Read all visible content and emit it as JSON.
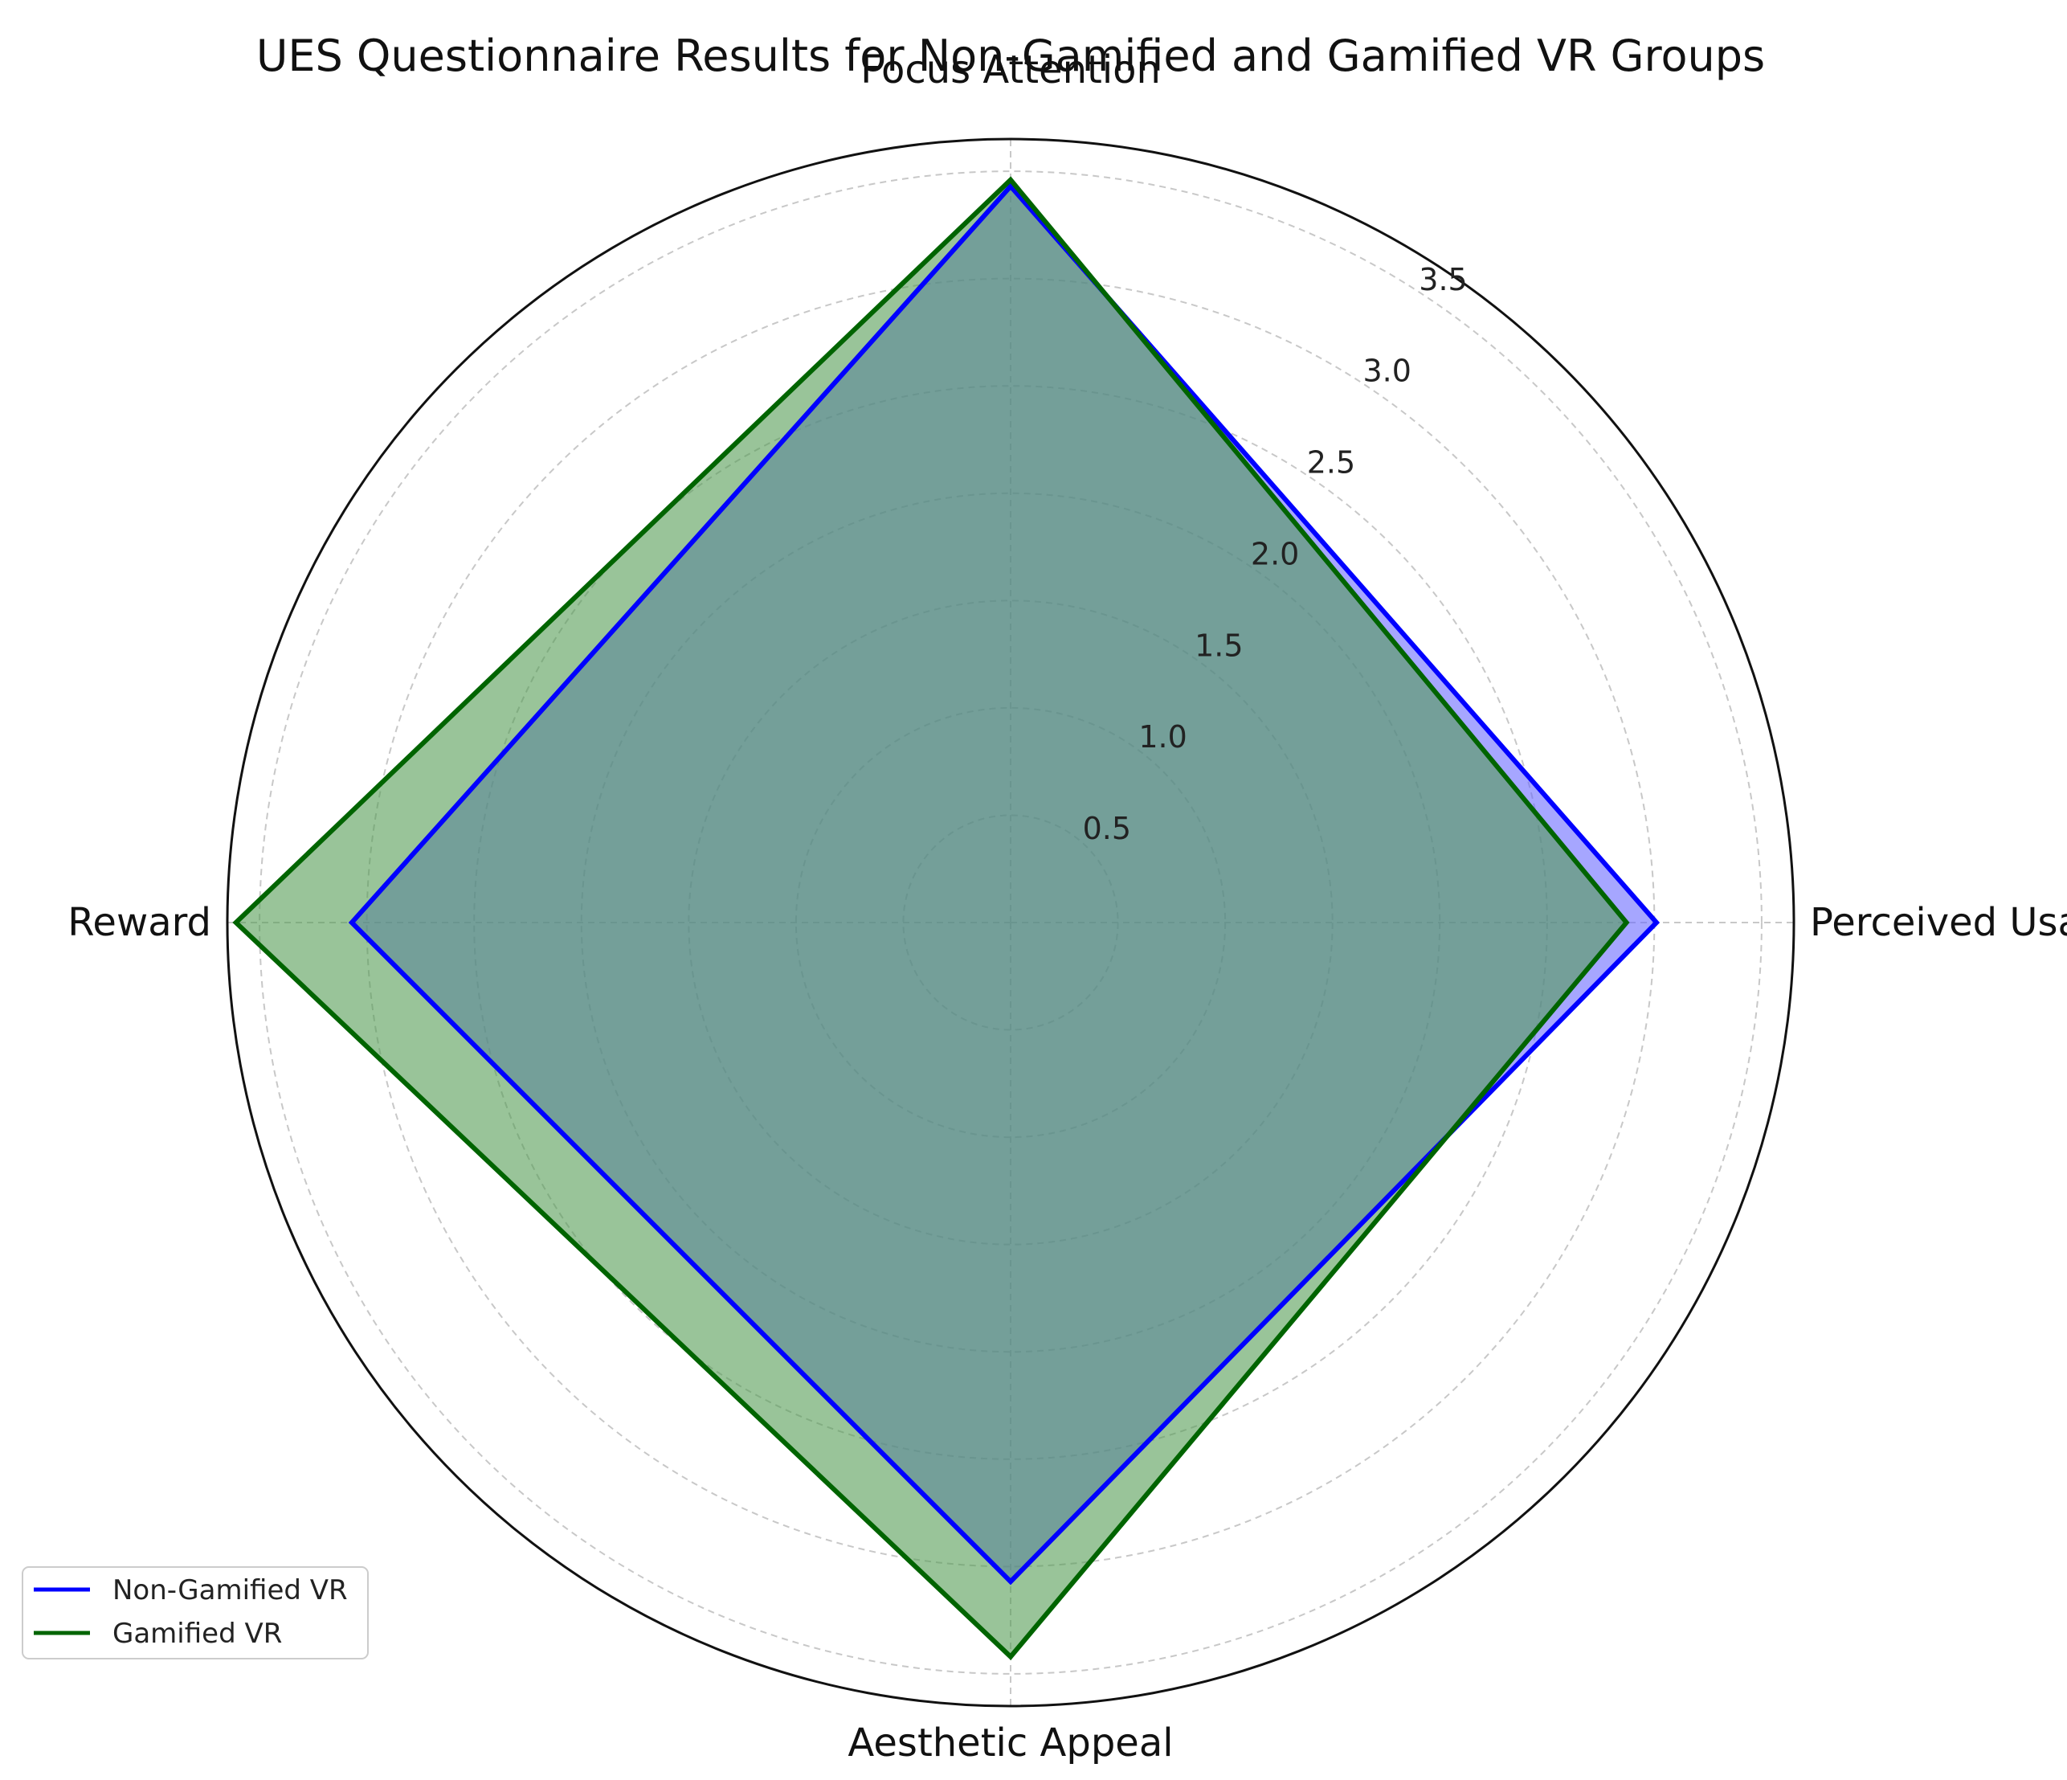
{
  "chart_data": {
    "type": "radar",
    "title": "UES Questionnaire Results for Non-Gamified and Gamified VR Groups",
    "categories": [
      "Focus Attention",
      "Perceived Usability",
      "Aesthetic Appeal",
      "Reward"
    ],
    "series": [
      {
        "name": "Non-Gamified VR",
        "values": [
          3.43,
          3.01,
          3.07,
          3.07
        ],
        "color": "#0000ff",
        "fill": "#6666ff"
      },
      {
        "name": "Gamified VR",
        "values": [
          3.46,
          2.87,
          3.42,
          3.61
        ],
        "color": "#006400",
        "fill": "#4f9a4f"
      }
    ],
    "rticks": [
      0.5,
      1.0,
      1.5,
      2.0,
      2.5,
      3.0,
      3.5
    ],
    "rtick_labels": [
      "0.5",
      "1.0",
      "1.5",
      "2.0",
      "2.5",
      "3.0",
      "3.5"
    ],
    "rmax": 3.65,
    "grid": true,
    "legend_position": "lower-left"
  }
}
